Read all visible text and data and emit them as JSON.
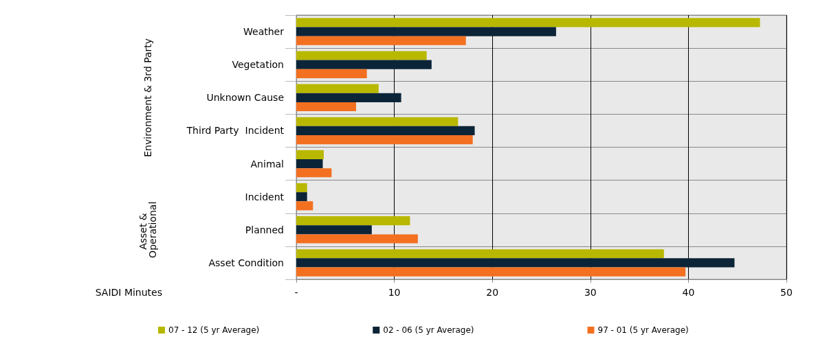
{
  "chart_data": {
    "type": "bar",
    "orientation": "horizontal",
    "xlabel": "SAIDI Minutes",
    "categories": [
      "Weather",
      "Vegetation",
      "Unknown Cause",
      "Third Party  Incident",
      "Animal",
      "Incident",
      "Planned",
      "Asset Condition"
    ],
    "series": [
      {
        "name": "07 - 12 (5 yr Average)",
        "color": "#b8b800",
        "values": [
          47.3,
          13.3,
          8.4,
          16.5,
          2.8,
          1.1,
          11.6,
          37.5
        ]
      },
      {
        "name": "02 - 06 (5 yr Average)",
        "color": "#0b2438",
        "values": [
          26.5,
          13.8,
          10.7,
          18.2,
          2.7,
          1.1,
          7.7,
          44.7
        ]
      },
      {
        "name": "97 - 01 (5 yr Average)",
        "color": "#f37021",
        "values": [
          17.3,
          7.2,
          6.1,
          18.0,
          3.6,
          1.7,
          12.4,
          39.7
        ]
      }
    ],
    "xlim": [
      0,
      50
    ],
    "xticks": [
      {
        "value": 0,
        "label": "-"
      },
      10,
      20,
      30,
      40,
      50
    ],
    "annotations": [
      "Environment & 3rd Party",
      "Asset & Operational"
    ],
    "grid": true,
    "legend": "bottom"
  }
}
